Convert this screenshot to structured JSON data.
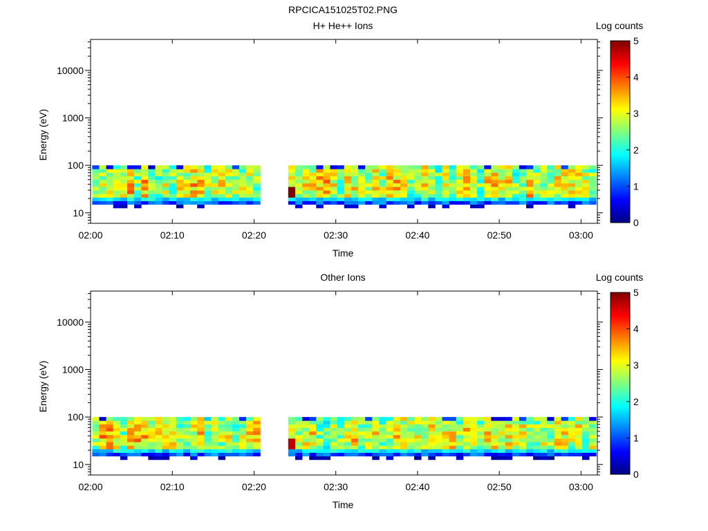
{
  "figure_title": "RPCICA151025T02.PNG",
  "chart_data": [
    {
      "type": "heatmap",
      "title": "H+ He++ Ions",
      "xlabel": "Time",
      "ylabel": "Energy (eV)",
      "x_ticks": [
        "02:00",
        "02:10",
        "02:20",
        "02:30",
        "02:40",
        "02:50",
        "03:00"
      ],
      "x_range": [
        "02:00",
        "03:02"
      ],
      "y_scale": "log",
      "y_range": [
        6,
        45000
      ],
      "y_ticks": [
        10,
        100,
        1000,
        10000
      ],
      "y_tick_labels": [
        "10",
        "100",
        "1000",
        "10000"
      ],
      "energy_band": [
        15,
        100
      ],
      "data_gap": [
        "02:21",
        "02:24"
      ],
      "colorbar": {
        "label": "Log counts",
        "range": [
          0,
          5
        ],
        "ticks": [
          "0",
          "1",
          "2",
          "3",
          "4",
          "5"
        ],
        "colormap": "jet"
      },
      "highlight": {
        "time": "02:24",
        "value": 5
      },
      "grid": false
    },
    {
      "type": "heatmap",
      "title": "Other Ions",
      "xlabel": "Time",
      "ylabel": "Energy (eV)",
      "x_ticks": [
        "02:00",
        "02:10",
        "02:20",
        "02:30",
        "02:40",
        "02:50",
        "03:00"
      ],
      "x_range": [
        "02:00",
        "03:02"
      ],
      "y_scale": "log",
      "y_range": [
        6,
        45000
      ],
      "y_ticks": [
        10,
        100,
        1000,
        10000
      ],
      "y_tick_labels": [
        "10",
        "100",
        "1000",
        "10000"
      ],
      "energy_band": [
        15,
        100
      ],
      "data_gap": [
        "02:21",
        "02:24"
      ],
      "colorbar": {
        "label": "Log counts",
        "range": [
          0,
          5
        ],
        "ticks": [
          "0",
          "1",
          "2",
          "3",
          "4",
          "5"
        ],
        "colormap": "jet"
      },
      "highlight": {
        "time": "02:24",
        "value": 4.7
      },
      "grid": false
    }
  ]
}
